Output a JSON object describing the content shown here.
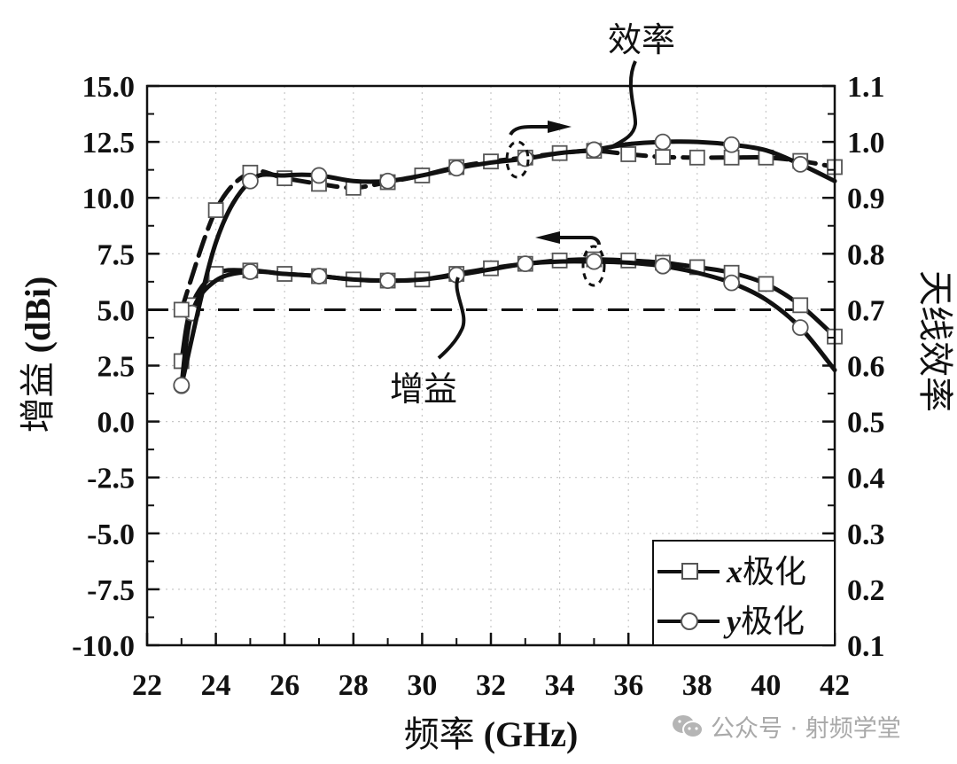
{
  "chart_data": {
    "type": "line",
    "title": "",
    "xlabel": "频率 (GHz)",
    "ylabel": "增益 (dBi)",
    "ylabel_right": "天线效率",
    "xlim": [
      22,
      42
    ],
    "ylim": [
      -10.0,
      15.0
    ],
    "ylim_right": [
      0.1,
      1.1
    ],
    "x_ticks": [
      "22",
      "24",
      "26",
      "28",
      "30",
      "32",
      "34",
      "36",
      "38",
      "40",
      "42"
    ],
    "y_ticks": [
      "15.0",
      "12.5",
      "10.0",
      "7.5",
      "5.0",
      "2.5",
      "0.0",
      "-2.5",
      "-5.0",
      "-7.5",
      "-10.0"
    ],
    "y_ticks_right": [
      "1.1",
      "1.0",
      "0.9",
      "0.8",
      "0.7",
      "0.6",
      "0.5",
      "0.4",
      "0.3",
      "0.2",
      "0.1"
    ],
    "grid": true,
    "reference_line": {
      "axis": "left",
      "value": 5.0,
      "style": "dashed"
    },
    "annotations": [
      {
        "text": "效率",
        "points_to": "efficiency curves",
        "arrow": "right axis"
      },
      {
        "text": "增益",
        "points_to": "gain curves",
        "arrow": "left axis"
      }
    ],
    "legend": {
      "position": "lower right",
      "entries": [
        "x极化",
        "y极化"
      ]
    },
    "series": [
      {
        "name": "x极化 增益",
        "axis": "left",
        "marker": "square",
        "line": "solid",
        "x": [
          23,
          23.3,
          24,
          25,
          26,
          27,
          28,
          29,
          30,
          31,
          32,
          33,
          34,
          35,
          36,
          37,
          38,
          39,
          40,
          41,
          42
        ],
        "values": [
          2.7,
          5.2,
          6.6,
          6.75,
          6.6,
          6.5,
          6.35,
          6.3,
          6.35,
          6.6,
          6.85,
          7.05,
          7.2,
          7.25,
          7.2,
          7.1,
          6.9,
          6.65,
          6.15,
          5.2,
          3.8
        ],
        "markers_at": [
          23,
          23.3,
          24,
          25,
          26,
          27,
          28,
          29,
          30,
          31,
          32,
          33,
          34,
          35,
          36,
          37,
          38,
          39,
          40,
          41,
          42
        ]
      },
      {
        "name": "y极化 增益",
        "axis": "left",
        "marker": "circle",
        "line": "solid",
        "x": [
          23,
          23.3,
          24,
          25,
          26,
          27,
          28,
          29,
          30,
          31,
          32,
          33,
          34,
          35,
          36,
          37,
          38,
          39,
          40,
          41,
          42
        ],
        "values": [
          1.6,
          4.85,
          6.3,
          6.7,
          6.6,
          6.5,
          6.35,
          6.3,
          6.35,
          6.55,
          6.8,
          7.05,
          7.15,
          7.15,
          7.1,
          6.95,
          6.65,
          6.2,
          5.45,
          4.2,
          2.3
        ],
        "markers_at": [
          23,
          23.3,
          25,
          27,
          29,
          31,
          33,
          35,
          37,
          39,
          41
        ]
      },
      {
        "name": "x极化 效率",
        "axis": "right",
        "marker": "square",
        "line": "dashed",
        "x": [
          23,
          24,
          25,
          26,
          27,
          28,
          29,
          30,
          31,
          32,
          33,
          34,
          35,
          36,
          37,
          38,
          39,
          40,
          41,
          42
        ],
        "values": [
          0.7,
          0.878,
          0.945,
          0.935,
          0.925,
          0.918,
          0.928,
          0.94,
          0.955,
          0.965,
          0.972,
          0.98,
          0.984,
          0.978,
          0.973,
          0.972,
          0.972,
          0.972,
          0.966,
          0.955
        ],
        "markers_at": [
          23,
          24,
          25,
          26,
          27,
          28,
          29,
          30,
          31,
          32,
          33,
          34,
          35,
          36,
          37,
          38,
          39,
          40,
          41,
          42
        ]
      },
      {
        "name": "y极化 效率",
        "axis": "right",
        "marker": "circle",
        "line": "solid",
        "x": [
          23,
          24,
          25,
          26,
          27,
          28,
          29,
          30,
          31,
          32,
          33,
          34,
          35,
          36,
          37,
          38,
          39,
          40,
          41,
          42
        ],
        "values": [
          0.565,
          0.82,
          0.93,
          0.94,
          0.94,
          0.93,
          0.93,
          0.94,
          0.953,
          0.963,
          0.97,
          0.98,
          0.986,
          0.996,
          1.0,
          1.0,
          0.995,
          0.985,
          0.96,
          0.93
        ],
        "markers_at": [
          23,
          25,
          27,
          29,
          31,
          33,
          35,
          37,
          39,
          41
        ]
      }
    ]
  },
  "legend": {
    "x_label_italic": "x",
    "x_label_cjk": "极化",
    "y_label_italic": "y",
    "y_label_cjk": "极化"
  },
  "axes": {
    "x_title_cjk": "频率",
    "x_title_unit": " (GHz)",
    "y_left_title_cjk": "增益",
    "y_left_title_unit": " (dBi)",
    "y_right_title": "天线效率"
  },
  "annotations": {
    "efficiency": "效率",
    "gain": "增益"
  },
  "watermark": {
    "icon": "wechat-icon",
    "text": "公众号 · 射频学堂"
  }
}
